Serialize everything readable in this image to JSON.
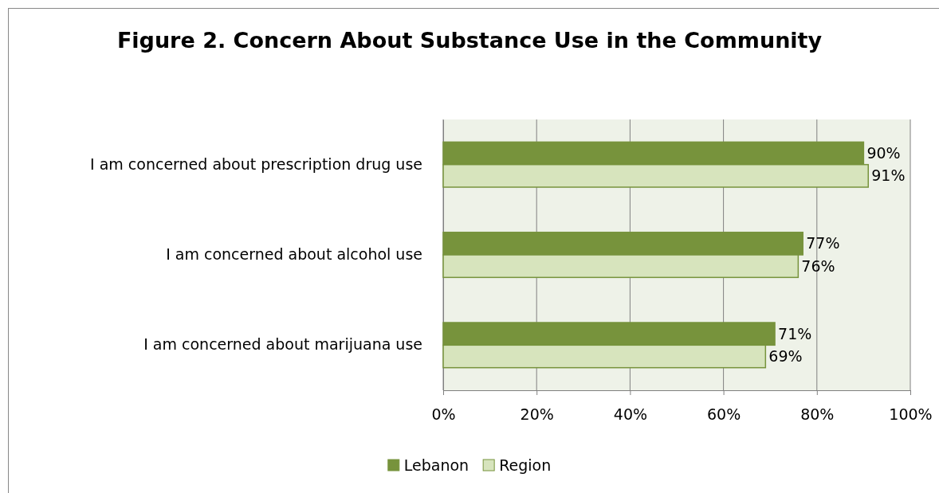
{
  "chart_data": {
    "type": "bar",
    "orientation": "horizontal",
    "title": "Figure 2. Concern About Substance Use in the Community",
    "categories": [
      "I am concerned about prescription drug use",
      "I am concerned about alcohol use",
      "I am concerned about marijuana use"
    ],
    "series": [
      {
        "name": "Lebanon",
        "color": "#77933c",
        "values": [
          90,
          77,
          71
        ],
        "value_labels": [
          "90%",
          "77%",
          "71%"
        ]
      },
      {
        "name": "Region",
        "color": "#d7e4bd",
        "values": [
          91,
          76,
          69
        ],
        "value_labels": [
          "91%",
          "76%",
          "69%"
        ]
      }
    ],
    "xlim": [
      0,
      100
    ],
    "xticks": [
      {
        "value": 0,
        "label": "0%"
      },
      {
        "value": 20,
        "label": "20%"
      },
      {
        "value": 40,
        "label": "40%"
      },
      {
        "value": 60,
        "label": "60%"
      },
      {
        "value": 80,
        "label": "80%"
      },
      {
        "value": 100,
        "label": "100%"
      }
    ],
    "grid": "x",
    "legend": "bottom"
  }
}
